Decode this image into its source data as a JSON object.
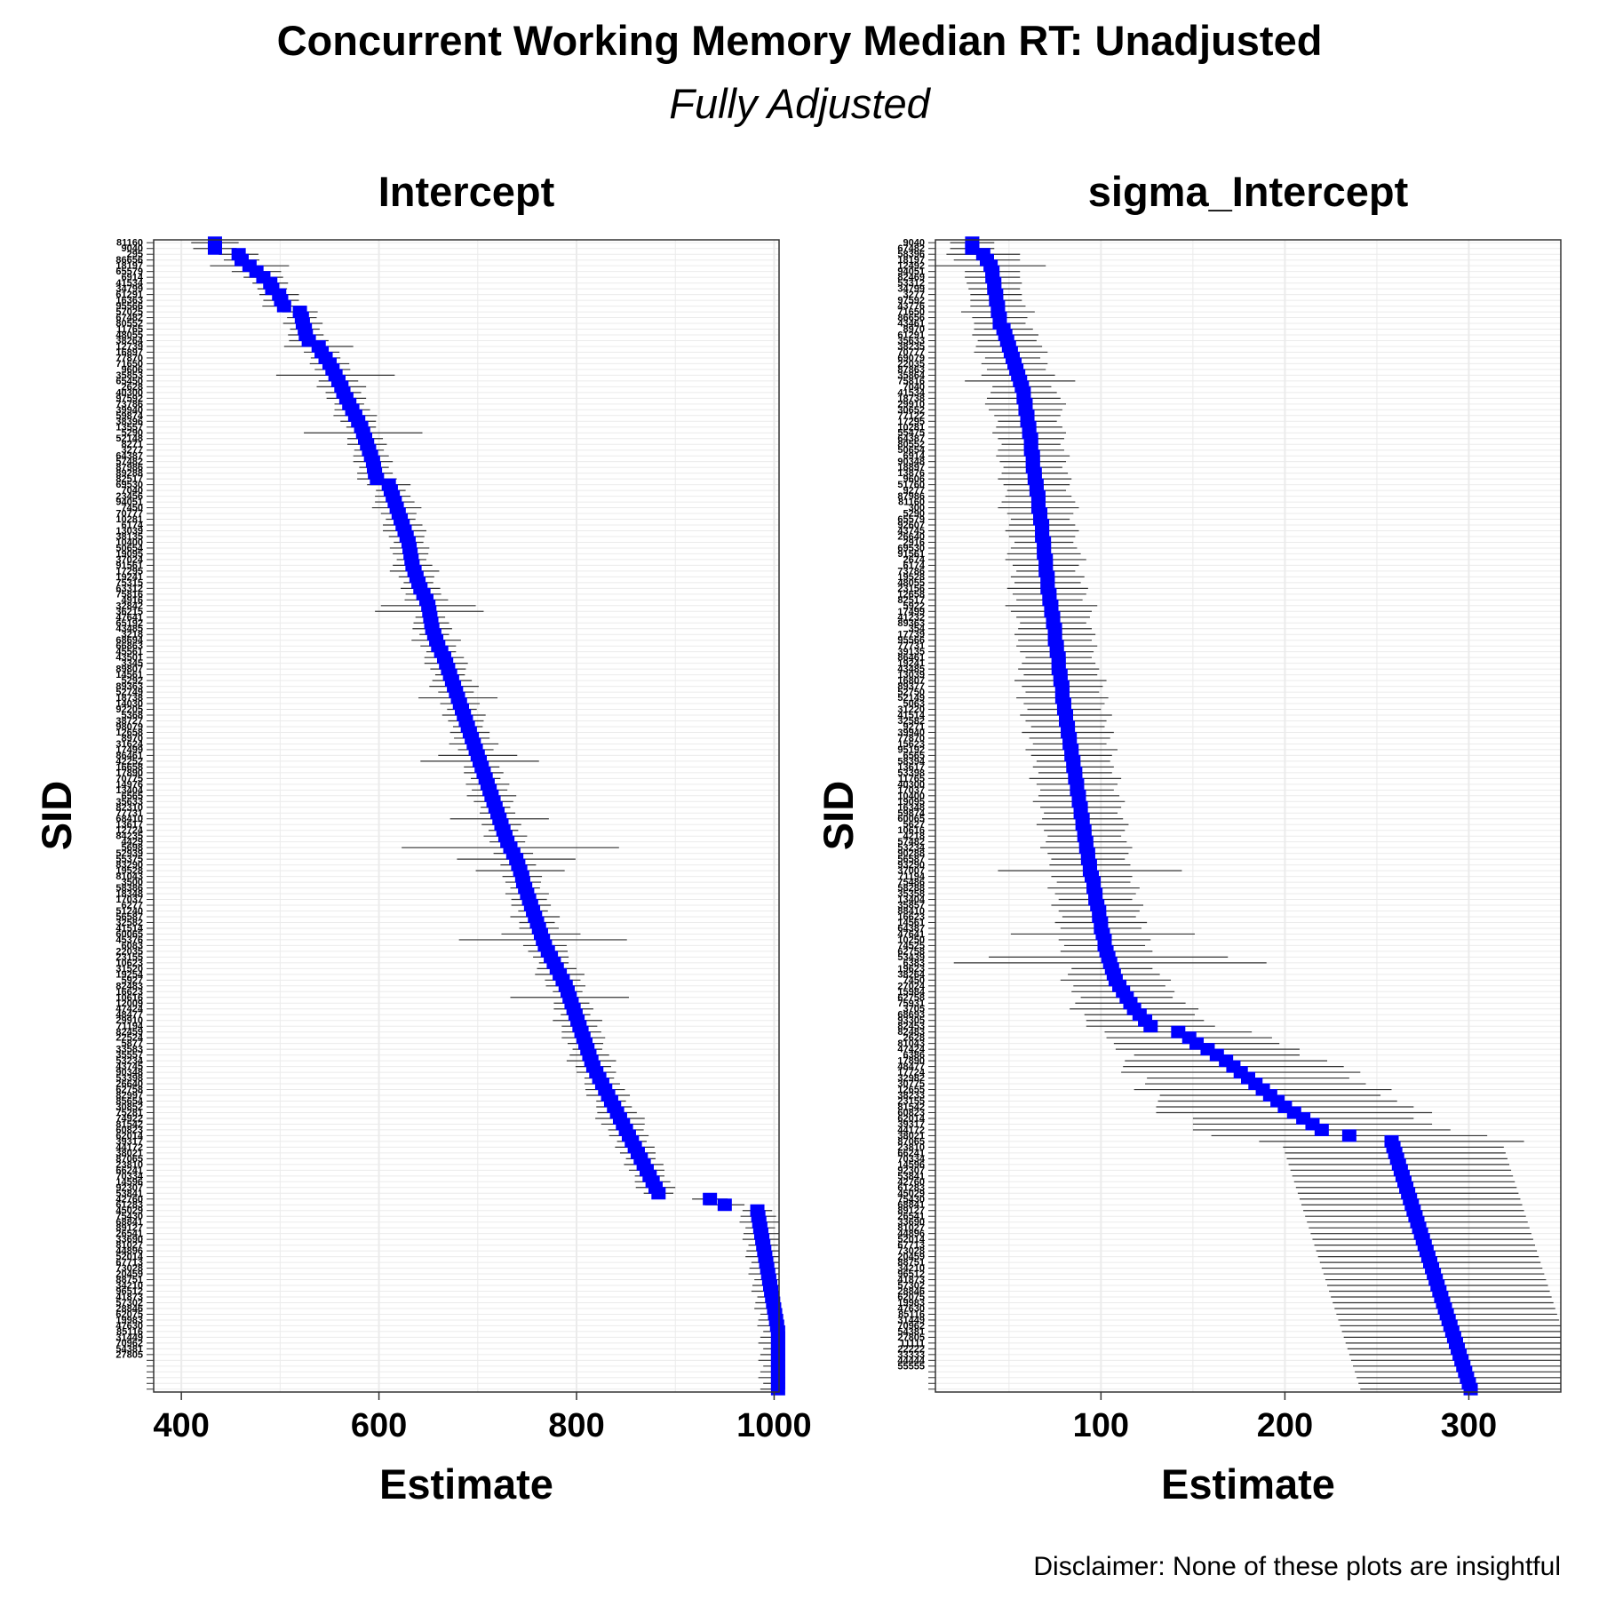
{
  "title": "Concurrent Working Memory Median RT: Unadjusted",
  "subtitle": "Fully Adjusted",
  "disclaimer": "Disclaimer: None of these plots are insightful",
  "colors": {
    "point": "#0000ff",
    "errorbar": "#333333",
    "grid": "#ebebeb",
    "border": "#333333"
  },
  "chart_data": [
    {
      "type": "scatter",
      "title": "Intercept",
      "xlabel": "Estimate",
      "ylabel": "SID",
      "xlim": [
        372,
        1005
      ],
      "xticks": [
        400,
        600,
        800,
        1000
      ],
      "grid": true,
      "n_subjects": 200,
      "sid_labels": [
        "81160",
        "9040",
        "295",
        "86656",
        "18197",
        "65579",
        "6914",
        "41534",
        "34799",
        "61291",
        "16363",
        "95566",
        "57025",
        "67482",
        "80552",
        "11765",
        "48055",
        "38264",
        "12739",
        "16897",
        "77870",
        "71650",
        "9606",
        "35853",
        "65450",
        "2628",
        "40300",
        "97592",
        "73786",
        "39940",
        "59874",
        "38396",
        "13557",
        "5290",
        "52148",
        "8271",
        "3277",
        "64387",
        "57482",
        "87986",
        "89288",
        "82517",
        "69530",
        "7040",
        "23456",
        "94051",
        "7450",
        "70777",
        "10281",
        "6174",
        "13039",
        "38135",
        "10400",
        "50654",
        "19095",
        "37024",
        "91561",
        "17295",
        "19241",
        "75315",
        "63312",
        "75816",
        "4916",
        "32842",
        "36215",
        "47641",
        "65192",
        "43485",
        "3218",
        "68694",
        "66863",
        "45561",
        "43501",
        "3345",
        "89807",
        "14561",
        "5292",
        "89363",
        "52749",
        "18738",
        "14030",
        "92205",
        "5368",
        "38727",
        "98079",
        "12658",
        "8970",
        "31624",
        "17499",
        "86461",
        "42252",
        "16658",
        "17890",
        "70775",
        "14976",
        "13404",
        "6565",
        "35633",
        "82310",
        "77731",
        "68410",
        "13617",
        "12724",
        "84235",
        "4429",
        "5698",
        "52939",
        "55375",
        "83290",
        "19528",
        "81043",
        "3500",
        "58386",
        "18348",
        "17037",
        "6277",
        "51240",
        "56587",
        "32582",
        "41514",
        "60065",
        "45376",
        "6083",
        "22035",
        "23155",
        "10623",
        "31520",
        "19254",
        "5927",
        "82483",
        "16623",
        "10616",
        "12009",
        "47424",
        "48477",
        "29910",
        "71194",
        "82459",
        "22524",
        "5877",
        "33583",
        "35557",
        "53234",
        "43745",
        "90348",
        "53398",
        "26640",
        "62758",
        "82997",
        "85654",
        "30852",
        "75281",
        "74922",
        "81542",
        "60823",
        "62014",
        "39317",
        "44172",
        "38021",
        "87065",
        "23810",
        "66241",
        "70334",
        "14596",
        "92307",
        "53841",
        "42760",
        "61283",
        "45029",
        "75430",
        "68841",
        "89127",
        "26541",
        "33690",
        "81027",
        "44896",
        "52014",
        "67713",
        "73028",
        "20459",
        "88751",
        "34210",
        "96512",
        "41873",
        "57302",
        "28846",
        "62075",
        "19983",
        "47630",
        "85116",
        "31449",
        "70962",
        "54381",
        "27805"
      ],
      "estimates": [
        434,
        434,
        458,
        461,
        469,
        476,
        483,
        490,
        492,
        499,
        501,
        504,
        520,
        522,
        523,
        525,
        526,
        529,
        539,
        542,
        546,
        550,
        553,
        556,
        559,
        562,
        564,
        567,
        570,
        573,
        576,
        579,
        582,
        584,
        586,
        588,
        590,
        592,
        594,
        595,
        596,
        598,
        610,
        612,
        614,
        616,
        618,
        620,
        622,
        624,
        626,
        628,
        630,
        631,
        632,
        633,
        634,
        636,
        638,
        640,
        642,
        645,
        648,
        650,
        651,
        652,
        653,
        654,
        656,
        658,
        660,
        663,
        666,
        668,
        670,
        672,
        674,
        676,
        678,
        680,
        682,
        684,
        686,
        688,
        690,
        692,
        694,
        696,
        698,
        700,
        702,
        704,
        706,
        708,
        710,
        712,
        714,
        716,
        718,
        720,
        722,
        724,
        726,
        728,
        730,
        733,
        736,
        739,
        741,
        743,
        745,
        746,
        748,
        750,
        752,
        754,
        756,
        758,
        760,
        762,
        764,
        766,
        768,
        771,
        774,
        777,
        780,
        783,
        786,
        789,
        791,
        793,
        795,
        797,
        799,
        801,
        803,
        805,
        807,
        809,
        811,
        813,
        815,
        817,
        820,
        823,
        826,
        829,
        832,
        835,
        838,
        841,
        844,
        847,
        850,
        853,
        856,
        859,
        862,
        865,
        868,
        871,
        874,
        877,
        880,
        883,
        935,
        950,
        983,
        984,
        985,
        986,
        987,
        988,
        989,
        990,
        991,
        992,
        993,
        994,
        995,
        996,
        997,
        998,
        999,
        1000,
        1001,
        1002,
        1003,
        1004,
        1004,
        1004,
        1004,
        1004,
        1004,
        1004,
        1004,
        1004,
        1004,
        1004
      ],
      "half_widths": [
        24,
        22,
        20,
        18,
        40,
        25,
        20,
        18,
        15,
        20,
        18,
        22,
        18,
        15,
        20,
        15,
        18,
        20,
        35,
        18,
        15,
        20,
        18,
        60,
        20,
        25,
        18,
        20,
        15,
        18,
        22,
        18,
        15,
        60,
        18,
        20,
        15,
        18,
        20,
        15,
        18,
        20,
        22,
        15,
        18,
        20,
        25,
        18,
        15,
        20,
        22,
        18,
        15,
        20,
        18,
        15,
        20,
        25,
        18,
        15,
        20,
        18,
        22,
        48,
        55,
        15,
        18,
        20,
        15,
        25,
        18,
        15,
        20,
        22,
        18,
        15,
        20,
        25,
        18,
        40,
        20,
        15,
        22,
        18,
        15,
        20,
        18,
        25,
        18,
        40,
        60,
        18,
        20,
        15,
        22,
        18,
        25,
        20,
        15,
        18,
        50,
        20,
        15,
        22,
        18,
        110,
        20,
        60,
        18,
        45,
        20,
        18,
        15,
        22,
        18,
        20,
        15,
        25,
        18,
        20,
        40,
        85,
        22,
        20,
        18,
        15,
        20,
        25,
        18,
        20,
        15,
        60,
        18,
        20,
        15,
        25,
        18,
        20,
        22,
        18,
        15,
        20,
        25,
        18,
        20,
        15,
        18,
        20,
        22,
        15,
        18,
        20,
        25,
        22,
        18,
        20,
        15,
        20,
        18,
        15,
        20,
        18,
        15,
        18,
        20,
        15,
        18,
        20,
        15,
        18,
        20,
        15,
        18,
        20,
        15,
        18,
        20,
        15,
        18,
        20,
        15,
        18,
        20,
        15,
        18,
        20,
        15,
        18,
        20,
        15,
        18,
        20,
        15,
        18,
        20,
        15,
        18,
        20,
        15,
        18
      ]
    },
    {
      "type": "scatter",
      "title": "sigma_Intercept",
      "xlabel": "Estimate",
      "ylabel": "SID",
      "xlim": [
        10,
        350
      ],
      "xticks": [
        100,
        200,
        300
      ],
      "grid": true,
      "n_subjects": 200,
      "sid_labels": [
        "9040",
        "67482",
        "58396",
        "18197",
        "12492",
        "94051",
        "82469",
        "53312",
        "34799",
        "3277",
        "97592",
        "43776",
        "71650",
        "86656",
        "43461",
        "8970",
        "61291",
        "35633",
        "38235",
        "70777",
        "69079",
        "22035",
        "87863",
        "35864",
        "75816",
        "7040",
        "41534",
        "18738",
        "29910",
        "30652",
        "77122",
        "17295",
        "10281",
        "55475",
        "64387",
        "80552",
        "50654",
        "6914",
        "90348",
        "18897",
        "13876",
        "9606",
        "51760",
        "9277",
        "87986",
        "81160",
        "300",
        "5290",
        "65579",
        "92607",
        "43745",
        "26640",
        "2916",
        "69530",
        "91561",
        "2674",
        "6174",
        "73786",
        "19528",
        "48055",
        "23156",
        "12658",
        "82517",
        "5922",
        "17499",
        "41232",
        "89363",
        "354",
        "17739",
        "95566",
        "77731",
        "39135",
        "86461",
        "19241",
        "43485",
        "13039",
        "16807",
        "89377",
        "52750",
        "52149",
        "5063",
        "31220",
        "41514",
        "32582",
        "9271",
        "39940",
        "77870",
        "15623",
        "95192",
        "6565",
        "58394",
        "13617",
        "53398",
        "11765",
        "40300",
        "17037",
        "10400",
        "19095",
        "16348",
        "59874",
        "60065",
        "5627",
        "10616",
        "4218",
        "57482",
        "53234",
        "90288",
        "56587",
        "93290",
        "37007",
        "71194",
        "75486",
        "58288",
        "35358",
        "13404",
        "35857",
        "88410",
        "16623",
        "14561",
        "64387",
        "47641",
        "10250",
        "74525",
        "62758",
        "53439",
        "6383",
        "19623",
        "38264",
        "7450",
        "27024",
        "15984",
        "62758",
        "75931",
        "3705",
        "68693",
        "93305",
        "82453",
        "82483",
        "2628",
        "81043",
        "47424",
        "6386",
        "17890",
        "48477",
        "17724",
        "32982",
        "30775",
        "12655",
        "38233",
        "23155",
        "81542",
        "60823",
        "62014",
        "39317",
        "44172",
        "38021",
        "87065",
        "23810",
        "66241",
        "70334",
        "14596",
        "92307",
        "53841",
        "42760",
        "61283",
        "45029",
        "75430",
        "68841",
        "89127",
        "26541",
        "33690",
        "81027",
        "44896",
        "52014",
        "67713",
        "73028",
        "20459",
        "88751",
        "34210",
        "96512",
        "41873",
        "57302",
        "28846",
        "62075",
        "19983",
        "47630",
        "85116",
        "31449",
        "70962",
        "54381",
        "27805",
        "11111",
        "22222",
        "33333",
        "44444",
        "55555"
      ],
      "estimates": [
        30,
        30,
        36,
        38,
        40,
        41,
        41,
        42,
        42,
        43,
        43,
        44,
        44,
        45,
        45,
        47,
        48,
        49,
        50,
        51,
        52,
        53,
        54,
        55,
        56,
        57,
        58,
        58,
        59,
        59,
        60,
        60,
        61,
        61,
        62,
        62,
        62,
        63,
        63,
        63,
        64,
        64,
        65,
        65,
        66,
        66,
        66,
        67,
        67,
        68,
        68,
        68,
        69,
        69,
        69,
        70,
        70,
        70,
        71,
        71,
        71,
        72,
        72,
        73,
        73,
        74,
        74,
        75,
        75,
        75,
        76,
        76,
        77,
        77,
        77,
        78,
        78,
        79,
        79,
        79,
        80,
        80,
        81,
        81,
        82,
        82,
        83,
        83,
        84,
        84,
        85,
        85,
        86,
        86,
        87,
        87,
        88,
        88,
        89,
        89,
        90,
        90,
        91,
        91,
        92,
        92,
        93,
        93,
        94,
        94,
        95,
        96,
        96,
        97,
        97,
        98,
        99,
        99,
        100,
        100,
        101,
        102,
        102,
        103,
        104,
        105,
        106,
        107,
        108,
        110,
        112,
        114,
        116,
        118,
        121,
        124,
        127,
        142,
        148,
        152,
        158,
        163,
        168,
        172,
        176,
        180,
        184,
        188,
        192,
        196,
        200,
        205,
        210,
        215,
        220,
        235,
        258,
        259,
        260,
        261,
        262,
        263,
        264,
        265,
        266,
        267,
        268,
        269,
        270,
        271,
        272,
        273,
        274,
        275,
        276,
        277,
        278,
        279,
        280,
        281,
        282,
        283,
        284,
        285,
        286,
        287,
        288,
        289,
        290,
        291,
        292,
        293,
        294,
        295,
        296,
        297,
        298,
        299,
        300,
        301
      ],
      "half_widths": [
        12,
        12,
        20,
        18,
        30,
        15,
        15,
        15,
        14,
        14,
        14,
        15,
        20,
        15,
        14,
        16,
        18,
        16,
        18,
        20,
        15,
        18,
        16,
        20,
        30,
        16,
        18,
        20,
        22,
        20,
        18,
        16,
        18,
        20,
        18,
        16,
        18,
        20,
        18,
        16,
        18,
        20,
        18,
        16,
        18,
        20,
        22,
        18,
        16,
        18,
        20,
        18,
        16,
        18,
        20,
        22,
        18,
        16,
        20,
        18,
        22,
        20,
        18,
        25,
        22,
        20,
        18,
        20,
        22,
        20,
        22,
        20,
        18,
        20,
        22,
        20,
        25,
        22,
        20,
        25,
        22,
        20,
        25,
        22,
        20,
        25,
        22,
        20,
        25,
        22,
        20,
        22,
        20,
        25,
        22,
        20,
        22,
        25,
        22,
        20,
        22,
        25,
        22,
        20,
        22,
        25,
        22,
        20,
        22,
        50,
        22,
        20,
        25,
        22,
        20,
        25,
        22,
        20,
        25,
        22,
        50,
        25,
        22,
        25,
        65,
        85,
        22,
        25,
        30,
        25,
        28,
        25,
        30,
        35,
        30,
        32,
        35,
        40,
        45,
        45,
        50,
        45,
        55,
        60,
        65,
        55,
        60,
        70,
        60,
        65,
        70,
        75,
        60,
        65,
        70,
        75,
        72,
        60,
        60,
        60,
        60,
        60,
        60,
        60,
        60,
        60,
        60,
        60,
        60,
        60,
        60,
        60,
        60,
        60,
        60,
        60,
        60,
        60,
        60,
        60,
        60,
        60,
        60,
        60,
        60,
        60,
        60,
        60,
        60,
        60,
        60,
        60,
        60,
        60,
        60,
        60,
        60,
        60,
        60,
        60,
        60,
        60,
        60,
        60,
        60,
        60,
        60,
        60,
        60,
        60
      ]
    }
  ]
}
